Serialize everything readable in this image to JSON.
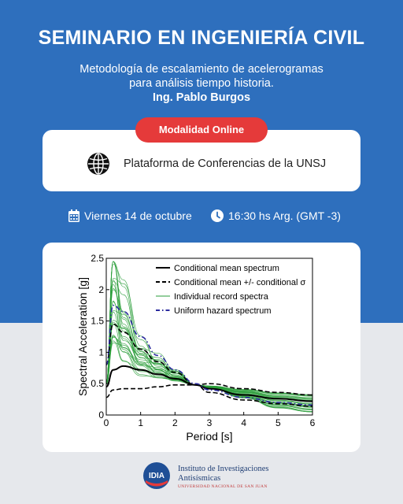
{
  "header": {
    "title": "SEMINARIO EN INGENIERÍA CIVIL",
    "subtitle_line1": "Metodología de escalamiento de acelerogramas",
    "subtitle_line2": "para análisis tiempo historia.",
    "speaker": "Ing. Pablo Burgos"
  },
  "modality": {
    "label": "Modalidad Online"
  },
  "venue": {
    "label": "Plataforma de Conferencias de la UNSJ",
    "icon": "globe-icon"
  },
  "schedule": {
    "date": "Viernes 14 de octubre",
    "time": "16:30 hs Arg. (GMT -3)",
    "date_icon": "calendar-icon",
    "time_icon": "clock-icon"
  },
  "colors": {
    "primary_blue": "#2e6fbd",
    "accent_red": "#e53a3a",
    "logo_navy": "#1f3e74"
  },
  "chart_data": {
    "type": "line",
    "xlabel": "Period [s]",
    "ylabel": "Spectral Acceleration [g]",
    "xlim": [
      0,
      6
    ],
    "ylim": [
      0,
      2.5
    ],
    "xticks": [
      "0",
      "1",
      "2",
      "3",
      "4",
      "5",
      "6"
    ],
    "yticks": [
      "0",
      "0.5",
      "1",
      "1.5",
      "2",
      "2.5"
    ],
    "legend_position": "top-right",
    "series": [
      {
        "name": "Conditional mean spectrum",
        "style": "solid",
        "color": "#000000",
        "x": [
          0,
          0.2,
          0.5,
          1,
          1.5,
          2,
          2.6,
          3,
          4,
          5,
          6
        ],
        "y": [
          0.45,
          0.72,
          0.78,
          0.72,
          0.65,
          0.58,
          0.48,
          0.42,
          0.32,
          0.26,
          0.22
        ]
      },
      {
        "name": "Conditional mean +/- conditional σ",
        "style": "dashed",
        "color": "#000000",
        "x": [
          0,
          0.2,
          0.5,
          1,
          1.5,
          2,
          2.6,
          3,
          4,
          5,
          6
        ],
        "y": [
          0.8,
          1.45,
          1.32,
          1.05,
          0.85,
          0.68,
          0.48,
          0.5,
          0.42,
          0.36,
          0.32
        ]
      },
      {
        "name": "",
        "style": "dashed",
        "color": "#000000",
        "x": [
          0,
          0.2,
          0.5,
          1,
          1.5,
          2,
          2.6,
          3,
          4,
          5,
          6
        ],
        "y": [
          0.28,
          0.4,
          0.42,
          0.42,
          0.45,
          0.48,
          0.48,
          0.36,
          0.24,
          0.18,
          0.14
        ]
      },
      {
        "name": "Individual record spectra",
        "style": "solid",
        "color": "#2a9d3a",
        "x": [
          0,
          0.2,
          0.5,
          1,
          1.5,
          2,
          2.6,
          3,
          4,
          5,
          6
        ],
        "y": [
          0.5,
          1.9,
          1.4,
          0.9,
          0.75,
          0.62,
          0.48,
          0.45,
          0.35,
          0.25,
          0.2
        ]
      },
      {
        "name": "Uniform hazard spectrum",
        "style": "dashdot",
        "color": "#2b2b9e",
        "x": [
          0,
          0.2,
          0.5,
          1,
          1.5,
          2,
          2.6,
          3,
          4,
          5,
          6
        ],
        "y": [
          0.8,
          1.75,
          1.65,
          1.25,
          0.95,
          0.72,
          0.5,
          0.4,
          0.28,
          0.2,
          0.16
        ]
      }
    ]
  },
  "footer": {
    "logo_text": "IDIA",
    "institute_line1": "Instituto de Investigaciones",
    "institute_line2": "Antisísmicas",
    "university": "UNIVERSIDAD NACIONAL DE SAN JUAN"
  }
}
